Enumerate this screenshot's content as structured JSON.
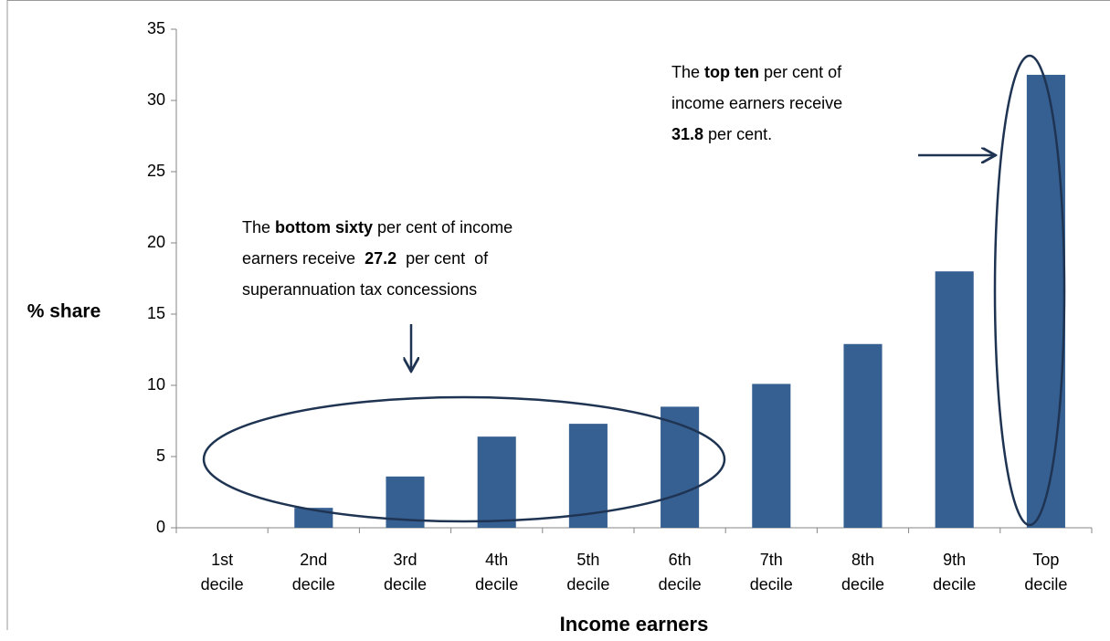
{
  "chart_data": {
    "type": "bar",
    "categories": [
      [
        "1st",
        "decile"
      ],
      [
        "2nd",
        "decile"
      ],
      [
        "3rd",
        "decile"
      ],
      [
        "4th",
        "decile"
      ],
      [
        "5th",
        "decile"
      ],
      [
        "6th",
        "decile"
      ],
      [
        "7th",
        "decile"
      ],
      [
        "8th",
        "decile"
      ],
      [
        "9th",
        "decile"
      ],
      [
        "Top",
        "decile"
      ]
    ],
    "values": [
      0,
      1.4,
      3.6,
      6.4,
      7.3,
      8.5,
      10.1,
      12.9,
      18.0,
      31.8
    ],
    "color": "#376092",
    "ylim": [
      0,
      35
    ],
    "yticks": [
      0,
      5,
      10,
      15,
      20,
      25,
      30,
      35
    ],
    "ylabel": "% share",
    "xlabel": "Income earners",
    "grid": false,
    "annotations": [
      {
        "lines": [
          [
            {
              "text": "The "
            },
            {
              "text": "bottom sixty",
              "bold": true
            },
            {
              "text": " per cent of income"
            }
          ],
          [
            {
              "text": "earners receive  "
            },
            {
              "text": "27.2",
              "bold": true
            },
            {
              "text": "  per cent  of"
            }
          ],
          [
            {
              "text": "superannuation tax concessions"
            }
          ]
        ]
      },
      {
        "lines": [
          [
            {
              "text": "The "
            },
            {
              "text": "top ten",
              "bold": true
            },
            {
              "text": " per cent of"
            }
          ],
          [
            {
              "text": "income earners receive"
            }
          ],
          [
            {
              "text": "31.8",
              "bold": true
            },
            {
              "text": " per cent."
            }
          ]
        ]
      }
    ]
  }
}
